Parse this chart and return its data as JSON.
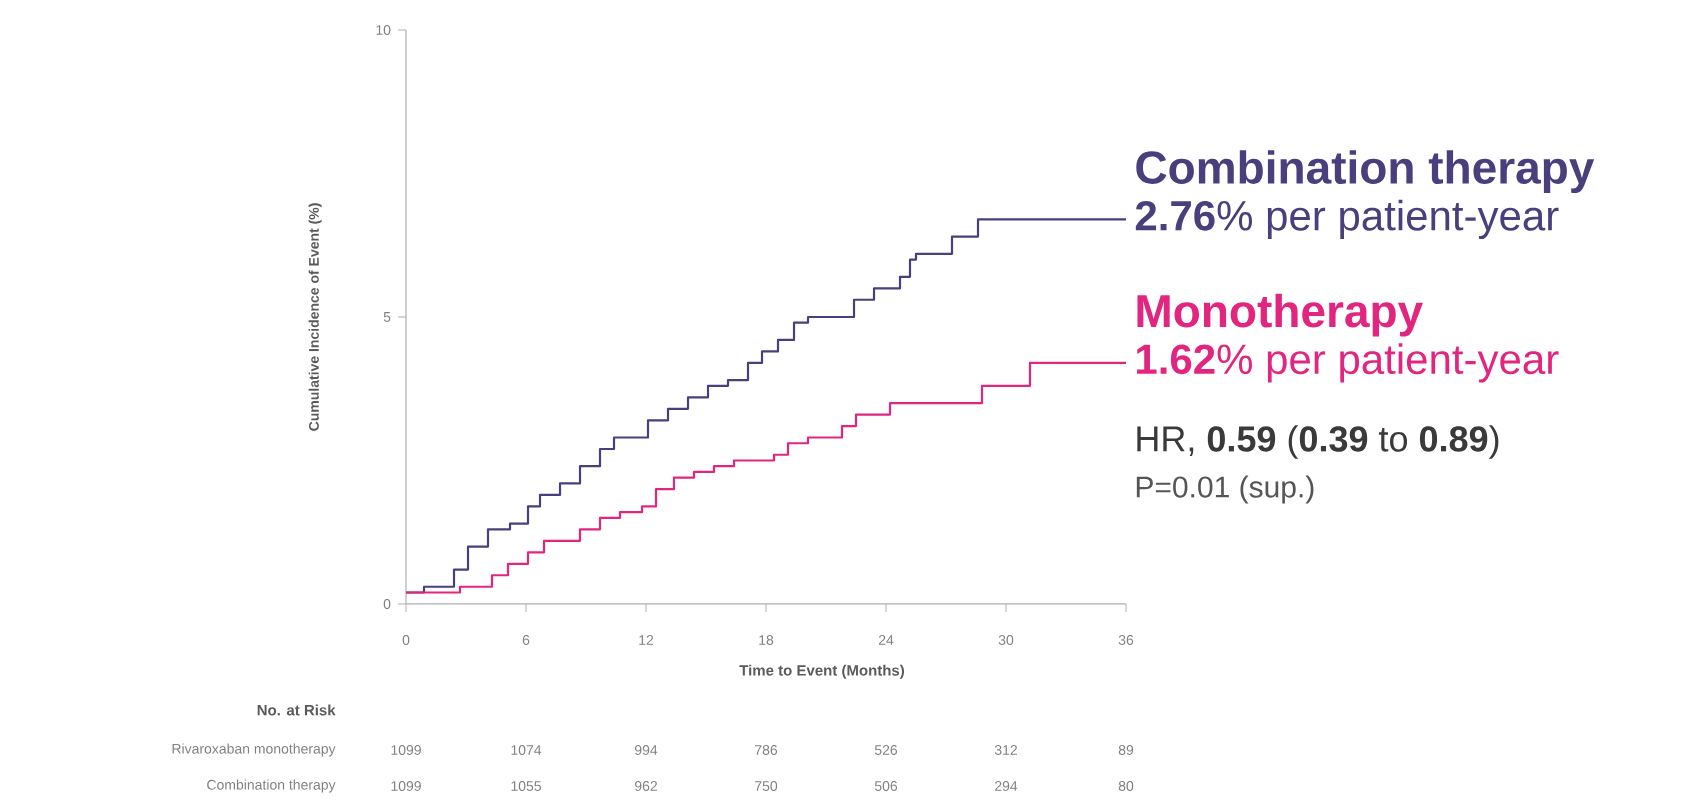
{
  "chart_data": {
    "type": "step",
    "xlabel": "Time to Event (Months)",
    "ylabel": "Cumulative Incidence of Event (%)",
    "xlim": [
      0,
      36
    ],
    "ylim": [
      0,
      10
    ],
    "xticks": [
      0,
      6,
      12,
      18,
      24,
      30,
      36
    ],
    "yticks": [
      0,
      5,
      10
    ],
    "series": [
      {
        "name": "Combination therapy",
        "color": "#4a3f7c",
        "x": [
          0,
          0.9,
          2.4,
          3.1,
          4.1,
          5.2,
          6.1,
          6.7,
          7.7,
          8.7,
          9.7,
          10.4,
          11.4,
          12.1,
          13.1,
          14.1,
          15.1,
          16.1,
          17.1,
          17.8,
          18.6,
          19.4,
          20.1,
          22.4,
          23.4,
          24.7,
          25.2,
          25.5,
          27.3,
          28.6,
          36
        ],
        "values": [
          0.2,
          0.3,
          0.6,
          1.0,
          1.3,
          1.4,
          1.7,
          1.9,
          2.1,
          2.4,
          2.7,
          2.9,
          2.9,
          3.2,
          3.4,
          3.6,
          3.8,
          3.9,
          4.2,
          4.4,
          4.6,
          4.9,
          5.0,
          5.3,
          5.5,
          5.7,
          6.0,
          6.1,
          6.4,
          6.7,
          6.7
        ]
      },
      {
        "name": "Monotherapy",
        "color": "#e2267f",
        "x": [
          0,
          2.7,
          4.3,
          5.1,
          6.1,
          6.9,
          8.7,
          9.7,
          10.7,
          11.8,
          12.5,
          13.4,
          14.4,
          15.4,
          16.4,
          18.4,
          19.1,
          20.1,
          21.8,
          22.5,
          24.2,
          28.8,
          31.2,
          36
        ],
        "values": [
          0.2,
          0.3,
          0.5,
          0.7,
          0.9,
          1.1,
          1.3,
          1.5,
          1.6,
          1.7,
          2.0,
          2.2,
          2.3,
          2.4,
          2.5,
          2.6,
          2.8,
          2.9,
          3.1,
          3.3,
          3.5,
          3.8,
          4.2,
          4.2
        ]
      }
    ],
    "annotations": [
      "**2.76**% per patient-year",
      "**1.62**% per patient-year",
      "HR, **0.59** (**0.39** to **0.89**)",
      "P=0.01 (sup.)",
      "No. at Risk",
      "Rivaroxaban monotherapy",
      "1099",
      "1074",
      "994",
      "786",
      "526",
      "312",
      "89",
      "Combination therapy",
      "1099",
      "1055",
      "962",
      "750",
      "506",
      "294",
      "80"
    ]
  }
}
